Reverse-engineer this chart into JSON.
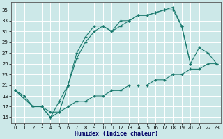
{
  "xlabel": "Humidex (Indice chaleur)",
  "xlim": [
    -0.5,
    23.5
  ],
  "ylim": [
    14,
    36.5
  ],
  "yticks": [
    15,
    17,
    19,
    21,
    23,
    25,
    27,
    29,
    31,
    33,
    35
  ],
  "xticks": [
    0,
    1,
    2,
    3,
    4,
    5,
    6,
    7,
    8,
    9,
    10,
    11,
    12,
    13,
    14,
    15,
    16,
    17,
    18,
    19,
    20,
    21,
    22,
    23
  ],
  "bg_color": "#cce8e8",
  "grid_color": "#ffffff",
  "line_color": "#1a7a6e",
  "curves": [
    {
      "x": [
        0,
        1,
        2,
        3,
        4,
        5,
        6,
        7,
        8,
        9,
        10,
        11,
        12,
        13,
        14,
        15,
        16,
        17,
        18,
        19,
        20,
        21,
        22,
        23
      ],
      "y": [
        20,
        19,
        17,
        17,
        15,
        16,
        17,
        18,
        18,
        19,
        19,
        20,
        20,
        21,
        21,
        21,
        22,
        22,
        23,
        23,
        24,
        24,
        25,
        25
      ]
    },
    {
      "x": [
        0,
        2,
        3,
        4,
        5,
        6,
        7,
        8,
        9,
        10,
        11,
        12,
        13,
        14,
        15,
        16,
        17,
        18,
        19,
        20,
        21,
        22,
        23
      ],
      "y": [
        20,
        17,
        17,
        16,
        16,
        21,
        27,
        30,
        32,
        32,
        31,
        32,
        33,
        34,
        34,
        34.5,
        35,
        35.5,
        32,
        25,
        28,
        27,
        25
      ]
    },
    {
      "x": [
        0,
        2,
        3,
        4,
        5,
        6,
        7,
        8,
        9,
        10,
        11,
        12,
        13,
        14,
        15,
        16,
        17,
        18,
        19,
        20
      ],
      "y": [
        20,
        17,
        17,
        15,
        18,
        21,
        26,
        29,
        31,
        32,
        31,
        33,
        33,
        34,
        34,
        34.5,
        35,
        35,
        32,
        25
      ]
    }
  ]
}
